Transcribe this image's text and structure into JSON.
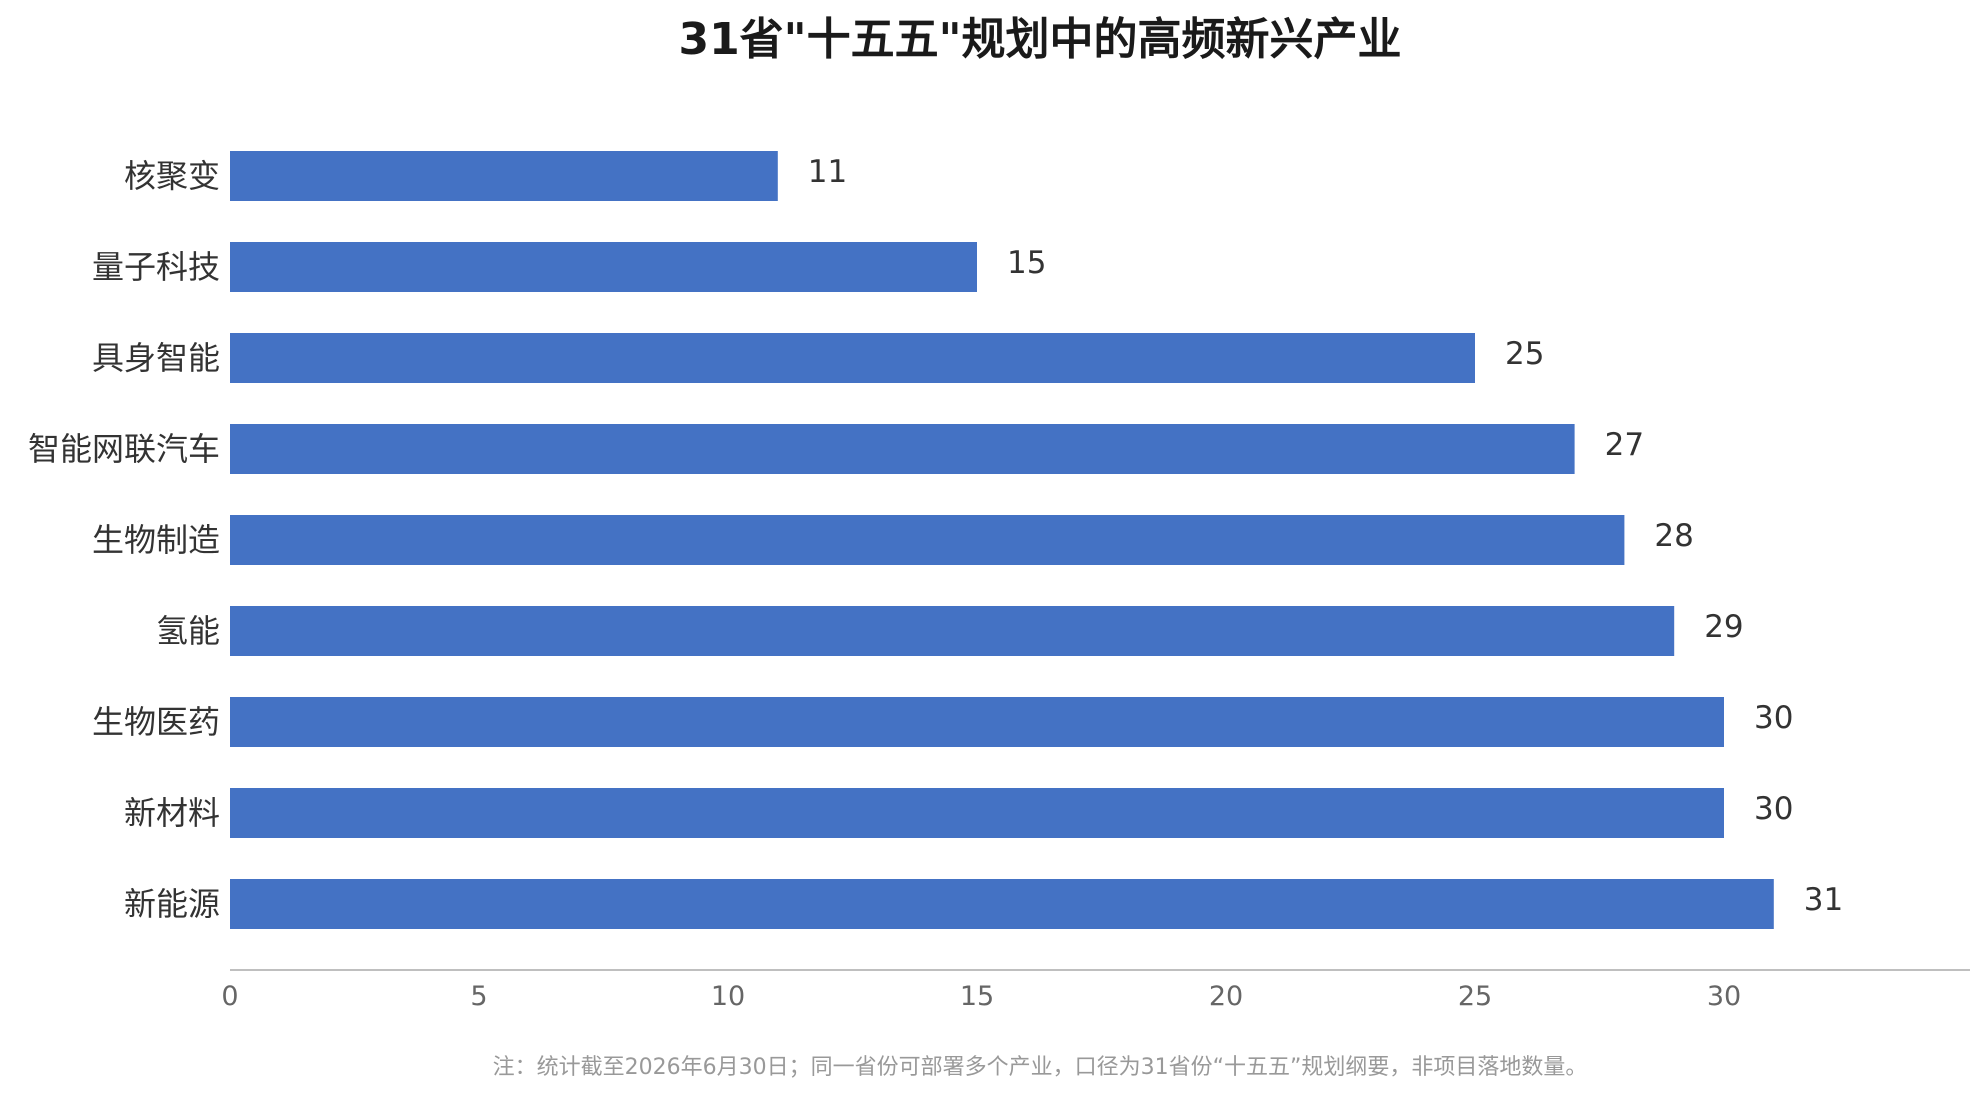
{
  "chart_data": {
    "type": "bar",
    "orientation": "horizontal",
    "title": "31省\"十五五\"规划中的高频新兴产业",
    "categories": [
      "核聚变",
      "量子科技",
      "具身智能",
      "智能网联汽车",
      "生物制造",
      "氢能",
      "生物医药",
      "新材料",
      "新能源"
    ],
    "values": [
      11,
      15,
      25,
      27,
      28,
      29,
      30,
      30,
      31
    ],
    "value_labels": [
      "11",
      "15",
      "25",
      "27",
      "28",
      "29",
      "30",
      "30",
      "31"
    ],
    "xlim": [
      0,
      35
    ],
    "x_ticks": [
      0,
      5,
      10,
      15,
      20,
      25,
      30
    ],
    "x_tick_labels": [
      "0",
      "5",
      "10",
      "15",
      "20",
      "25",
      "30"
    ],
    "xlabel": "",
    "ylabel": "",
    "grid": false,
    "legend": "none",
    "bar_color": "#4472C4",
    "axis_color": "#BFBFBF"
  },
  "footnote": "注：统计截至2026年6月30日；同一省份可部署多个产业，口径为31省份“十五五”规划纲要，非项目落地数量。"
}
